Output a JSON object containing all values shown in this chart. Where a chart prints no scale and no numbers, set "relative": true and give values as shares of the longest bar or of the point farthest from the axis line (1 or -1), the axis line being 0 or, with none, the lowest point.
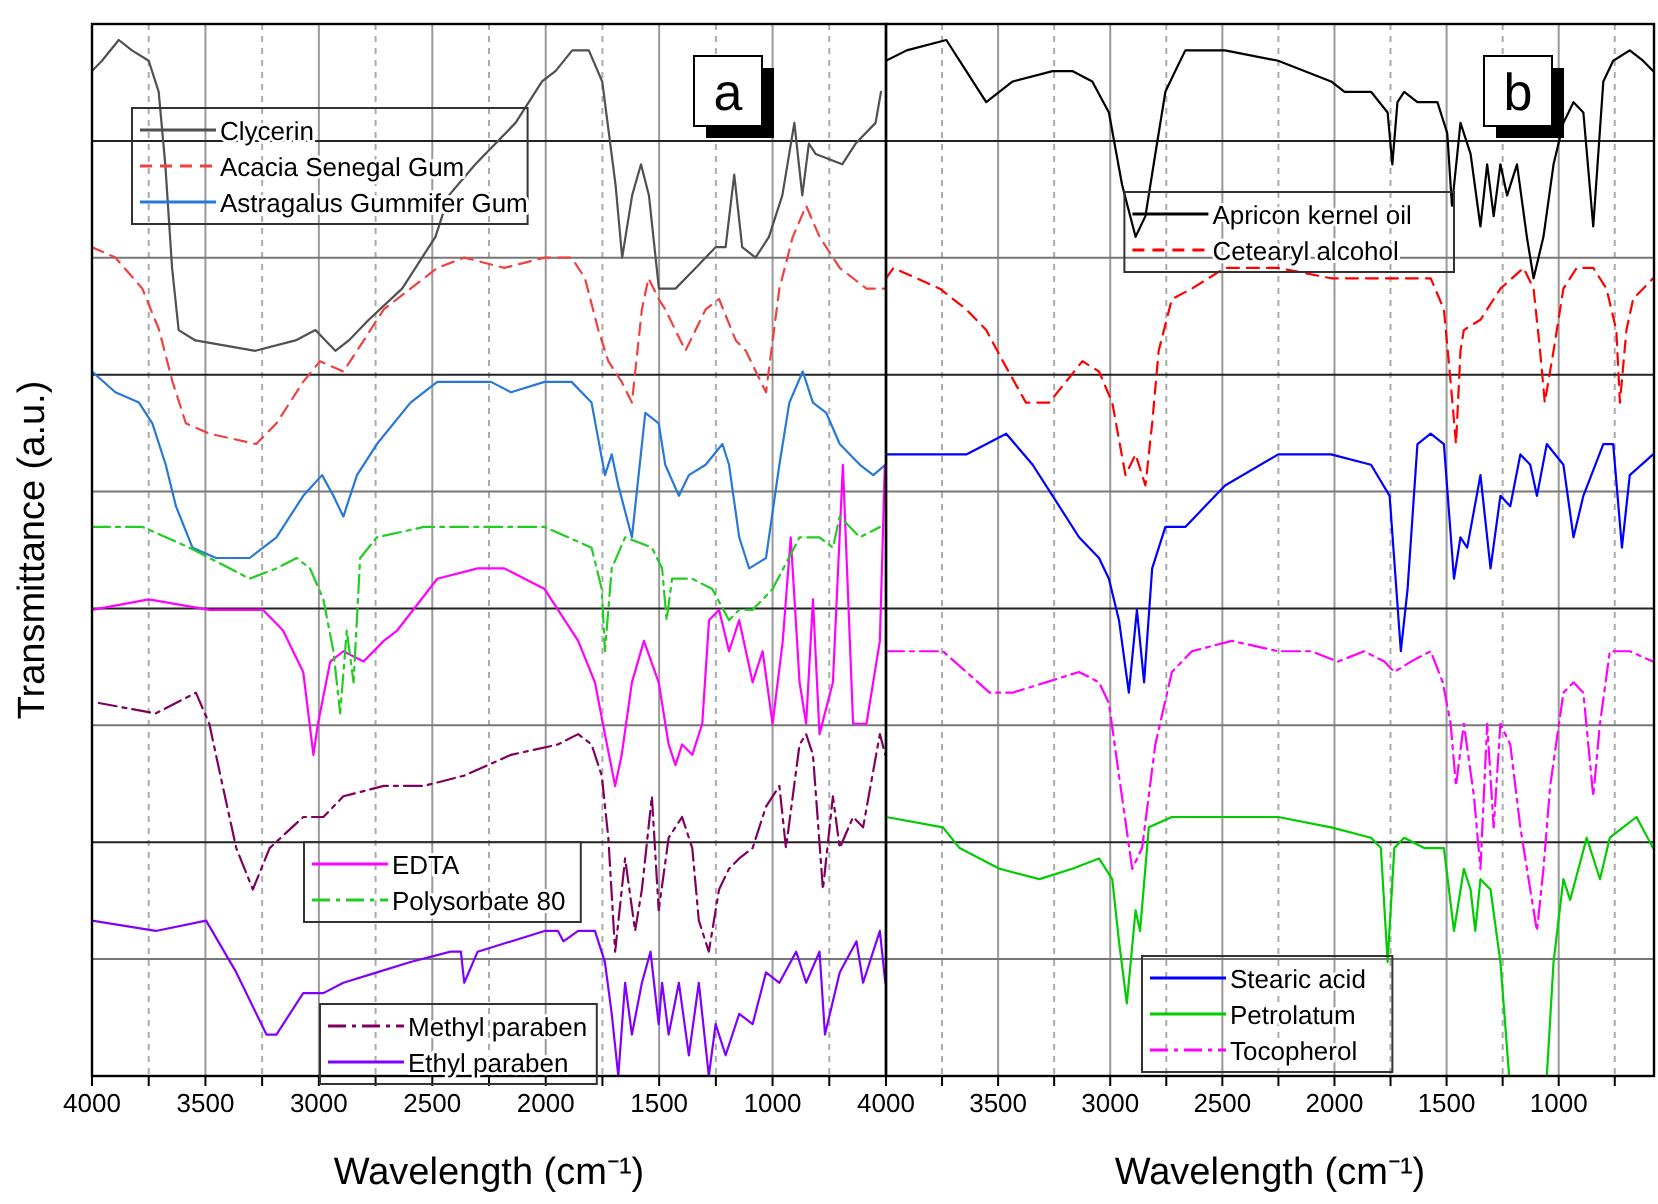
{
  "chart_data": [
    {
      "type": "line",
      "xlabel": "Wavelength (cm⁻¹)",
      "ylabel": "Transmittance (a.u.)",
      "annotations": [
        "a"
      ],
      "relative": true,
      "grid": true,
      "legend": "left",
      "xlim": [
        4000,
        500
      ],
      "xticks": [
        4000,
        {
          "value": 3750,
          "label": null
        },
        3500,
        {
          "value": 3250,
          "label": null
        },
        3000,
        {
          "value": 2750,
          "label": null
        },
        2500,
        {
          "value": 2250,
          "label": null
        },
        2000,
        {
          "value": 1750,
          "label": null
        },
        1500,
        {
          "value": 1250,
          "label": null
        },
        1000,
        {
          "value": 750,
          "label": null
        },
        {
          "value": 500,
          "label": null
        }
      ],
      "series": [
        {
          "name": "Clycerin",
          "color": "#505050",
          "line_style": "solid",
          "x": [
            4000,
            3956,
            3882,
            3824,
            3750,
            3706,
            3677,
            3647,
            3618,
            3544,
            3280,
            3103,
            3015,
            2971,
            2927,
            2868,
            2780,
            2633,
            2545,
            2486,
            2427,
            2310,
            2133,
            2016,
            1957,
            1883,
            1810,
            1751,
            1692,
            1663,
            1619,
            1580,
            1545,
            1501,
            1428,
            1339,
            1251,
            1207,
            1169,
            1134,
            1075,
            1016,
            957,
            904,
            869,
            840,
            810,
            693,
            634,
            546,
            522
          ],
          "values": [
            0.97,
            0.98,
            1.0,
            0.99,
            0.98,
            0.95,
            0.88,
            0.78,
            0.72,
            0.71,
            0.7,
            0.71,
            0.72,
            0.71,
            0.7,
            0.71,
            0.73,
            0.76,
            0.79,
            0.81,
            0.85,
            0.88,
            0.92,
            0.96,
            0.97,
            0.99,
            0.99,
            0.96,
            0.86,
            0.79,
            0.85,
            0.88,
            0.85,
            0.76,
            0.76,
            0.78,
            0.8,
            0.8,
            0.87,
            0.8,
            0.79,
            0.81,
            0.85,
            0.92,
            0.85,
            0.9,
            0.89,
            0.88,
            0.9,
            0.92,
            0.95
          ]
        },
        {
          "name": "Acacia Senegal Gum",
          "color": "#f04040",
          "line_style": "dashed",
          "x": [
            4000,
            3897,
            3778,
            3704,
            3645,
            3586,
            3483,
            3276,
            3187,
            3069,
            2995,
            2892,
            2832,
            2714,
            2596,
            2478,
            2359,
            2182,
            2005,
            1886,
            1827,
            1768,
            1724,
            1665,
            1620,
            1576,
            1547,
            1502,
            1473,
            1384,
            1295,
            1236,
            1162,
            1118,
            1029,
            970,
            911,
            852,
            793,
            704,
            586,
            503
          ],
          "values": [
            0.8,
            0.79,
            0.76,
            0.72,
            0.67,
            0.63,
            0.62,
            0.61,
            0.63,
            0.67,
            0.69,
            0.68,
            0.7,
            0.74,
            0.76,
            0.78,
            0.79,
            0.78,
            0.79,
            0.79,
            0.77,
            0.72,
            0.69,
            0.67,
            0.65,
            0.74,
            0.77,
            0.75,
            0.74,
            0.7,
            0.74,
            0.75,
            0.71,
            0.7,
            0.66,
            0.76,
            0.81,
            0.84,
            0.81,
            0.78,
            0.76,
            0.76
          ]
        },
        {
          "name": "Astragalus Gummifer Gum",
          "color": "#2878d8",
          "line_style": "solid",
          "x": [
            4000,
            3897,
            3793,
            3734,
            3675,
            3630,
            3557,
            3453,
            3305,
            3187,
            3069,
            2986,
            2936,
            2892,
            2832,
            2744,
            2596,
            2478,
            2359,
            2241,
            2153,
            2005,
            1886,
            1798,
            1739,
            1709,
            1680,
            1620,
            1561,
            1502,
            1473,
            1413,
            1369,
            1295,
            1221,
            1192,
            1147,
            1118,
            1103,
            1029,
            970,
            926,
            867,
            822,
            763,
            704,
            615,
            556,
            503
          ],
          "values": [
            0.68,
            0.66,
            0.65,
            0.63,
            0.59,
            0.55,
            0.51,
            0.5,
            0.5,
            0.52,
            0.56,
            0.58,
            0.56,
            0.54,
            0.58,
            0.61,
            0.65,
            0.67,
            0.67,
            0.67,
            0.66,
            0.67,
            0.67,
            0.65,
            0.58,
            0.6,
            0.57,
            0.52,
            0.64,
            0.63,
            0.59,
            0.56,
            0.58,
            0.59,
            0.61,
            0.59,
            0.52,
            0.5,
            0.49,
            0.5,
            0.59,
            0.65,
            0.68,
            0.65,
            0.64,
            0.61,
            0.59,
            0.58,
            0.59
          ]
        },
        {
          "name": "EDTA",
          "color": "#ff00ff",
          "line_style": "solid",
          "x": [
            4000,
            3750,
            3483,
            3247,
            3158,
            3069,
            3024,
            3004,
            2950,
            2892,
            2803,
            2714,
            2655,
            2478,
            2300,
            2182,
            2005,
            1857,
            1783,
            1739,
            1694,
            1665,
            1620,
            1567,
            1502,
            1458,
            1428,
            1399,
            1354,
            1310,
            1280,
            1236,
            1192,
            1147,
            1088,
            1044,
            1000,
            955,
            920,
            881,
            852,
            822,
            793,
            734,
            690,
            645,
            586,
            527,
            505
          ],
          "values": [
            0.45,
            0.46,
            0.45,
            0.45,
            0.43,
            0.39,
            0.31,
            0.34,
            0.4,
            0.41,
            0.4,
            0.42,
            0.43,
            0.48,
            0.49,
            0.49,
            0.47,
            0.42,
            0.38,
            0.33,
            0.28,
            0.31,
            0.38,
            0.42,
            0.38,
            0.32,
            0.3,
            0.32,
            0.31,
            0.34,
            0.44,
            0.45,
            0.41,
            0.44,
            0.38,
            0.41,
            0.34,
            0.42,
            0.52,
            0.38,
            0.34,
            0.46,
            0.33,
            0.38,
            0.59,
            0.34,
            0.34,
            0.42,
            0.59
          ]
        },
        {
          "name": "Polysorbate 80",
          "color": "#22cc22",
          "line_style": "dashdot",
          "x": [
            4000,
            3778,
            3571,
            3305,
            3187,
            3098,
            3039,
            2980,
            2936,
            2906,
            2877,
            2847,
            2818,
            2744,
            2537,
            2300,
            2005,
            1798,
            1753,
            1739,
            1709,
            1650,
            1532,
            1487,
            1467,
            1443,
            1354,
            1266,
            1192,
            1147,
            1088,
            1000,
            881,
            793,
            734,
            704,
            615,
            527
          ],
          "values": [
            0.53,
            0.53,
            0.51,
            0.48,
            0.49,
            0.5,
            0.49,
            0.46,
            0.41,
            0.35,
            0.43,
            0.38,
            0.5,
            0.52,
            0.53,
            0.53,
            0.53,
            0.51,
            0.47,
            0.41,
            0.49,
            0.52,
            0.51,
            0.49,
            0.44,
            0.48,
            0.48,
            0.47,
            0.44,
            0.45,
            0.45,
            0.47,
            0.52,
            0.52,
            0.51,
            0.54,
            0.52,
            0.53
          ]
        },
        {
          "name": "Methyl paraben",
          "color": "#800060",
          "line_style": "dashdot",
          "x": [
            3970,
            3719,
            3542,
            3483,
            3424,
            3364,
            3291,
            3217,
            3069,
            2980,
            2892,
            2714,
            2537,
            2359,
            2153,
            1946,
            1857,
            1798,
            1753,
            1724,
            1694,
            1650,
            1606,
            1576,
            1532,
            1502,
            1458,
            1399,
            1354,
            1325,
            1281,
            1236,
            1192,
            1147,
            1088,
            1029,
            970,
            941,
            881,
            852,
            822,
            778,
            734,
            704,
            645,
            601,
            527,
            503
          ],
          "values": [
            0.36,
            0.35,
            0.37,
            0.34,
            0.28,
            0.22,
            0.18,
            0.22,
            0.25,
            0.25,
            0.27,
            0.28,
            0.28,
            0.29,
            0.31,
            0.32,
            0.33,
            0.32,
            0.29,
            0.23,
            0.12,
            0.21,
            0.14,
            0.18,
            0.27,
            0.16,
            0.23,
            0.25,
            0.22,
            0.15,
            0.12,
            0.18,
            0.2,
            0.21,
            0.22,
            0.26,
            0.28,
            0.22,
            0.32,
            0.33,
            0.31,
            0.18,
            0.27,
            0.22,
            0.25,
            0.24,
            0.33,
            0.31
          ]
        },
        {
          "name": "Ethyl paraben",
          "color": "#8000ff",
          "line_style": "solid",
          "x": [
            4000,
            3719,
            3497,
            3364,
            3231,
            3187,
            3069,
            2980,
            2892,
            2744,
            2596,
            2419,
            2374,
            2359,
            2300,
            2005,
            1946,
            1922,
            1857,
            1783,
            1739,
            1709,
            1680,
            1650,
            1620,
            1576,
            1538,
            1502,
            1487,
            1458,
            1413,
            1369,
            1325,
            1281,
            1251,
            1207,
            1147,
            1088,
            1029,
            970,
            896,
            852,
            793,
            769,
            704,
            630,
            601,
            527,
            503
          ],
          "values": [
            0.15,
            0.14,
            0.15,
            0.1,
            0.04,
            0.04,
            0.08,
            0.08,
            0.09,
            0.1,
            0.11,
            0.12,
            0.12,
            0.09,
            0.12,
            0.14,
            0.14,
            0.13,
            0.14,
            0.14,
            0.11,
            0.06,
            0.0,
            0.09,
            0.04,
            0.09,
            0.12,
            0.05,
            0.09,
            0.04,
            0.09,
            0.02,
            0.09,
            0.0,
            0.05,
            0.02,
            0.06,
            0.05,
            0.1,
            0.09,
            0.12,
            0.09,
            0.12,
            0.04,
            0.1,
            0.13,
            0.09,
            0.14,
            0.09
          ]
        }
      ]
    },
    {
      "type": "line",
      "xlabel": "Wavelength (cm⁻¹)",
      "annotations": [
        "b"
      ],
      "relative": true,
      "grid": true,
      "legend": "right",
      "xlim": [
        4000,
        575
      ],
      "xticks": [
        4000,
        {
          "value": 3750,
          "label": null
        },
        3500,
        {
          "value": 3250,
          "label": null
        },
        3000,
        {
          "value": 2750,
          "label": null
        },
        2500,
        {
          "value": 2250,
          "label": null
        },
        2000,
        {
          "value": 1750,
          "label": null
        },
        1500,
        {
          "value": 1250,
          "label": null
        },
        1000,
        {
          "value": 750,
          "label": null
        }
      ],
      "series": [
        {
          "name": "Apricon kernel oil",
          "color": "#000000",
          "line_style": "solid",
          "x": [
            4000,
            3908,
            3731,
            3642,
            3553,
            3435,
            3257,
            3169,
            3080,
            3006,
            2947,
            2887,
            2843,
            2799,
            2754,
            2710,
            2665,
            2488,
            2251,
            2015,
            1955,
            1837,
            1763,
            1742,
            1719,
            1689,
            1630,
            1541,
            1497,
            1476,
            1438,
            1393,
            1349,
            1319,
            1290,
            1260,
            1230,
            1186,
            1142,
            1112,
            1068,
            1023,
            979,
            934,
            890,
            846,
            801,
            757,
            683,
            624,
            579
          ],
          "values": [
            0.98,
            0.99,
            1.0,
            0.97,
            0.94,
            0.96,
            0.97,
            0.97,
            0.96,
            0.93,
            0.86,
            0.81,
            0.83,
            0.89,
            0.95,
            0.97,
            0.99,
            0.99,
            0.98,
            0.96,
            0.95,
            0.95,
            0.93,
            0.88,
            0.94,
            0.95,
            0.94,
            0.94,
            0.91,
            0.84,
            0.92,
            0.89,
            0.82,
            0.88,
            0.83,
            0.88,
            0.85,
            0.88,
            0.81,
            0.77,
            0.81,
            0.88,
            0.92,
            0.94,
            0.93,
            0.82,
            0.96,
            0.98,
            0.99,
            0.98,
            0.97
          ]
        },
        {
          "name": "Cetearyl alcohol",
          "color": "#ff0000",
          "line_style": "dashed",
          "x": [
            4000,
            3967,
            3760,
            3642,
            3553,
            3479,
            3376,
            3272,
            3198,
            3124,
            3050,
            2991,
            2932,
            2887,
            2843,
            2813,
            2784,
            2725,
            2636,
            2488,
            2251,
            2015,
            1778,
            1571,
            1512,
            1482,
            1458,
            1438,
            1423,
            1349,
            1260,
            1157,
            1112,
            1083,
            1062,
            1023,
            979,
            920,
            846,
            787,
            743,
            727,
            698,
            668,
            579
          ],
          "values": [
            0.77,
            0.78,
            0.76,
            0.74,
            0.72,
            0.69,
            0.65,
            0.65,
            0.67,
            0.69,
            0.68,
            0.65,
            0.58,
            0.6,
            0.57,
            0.63,
            0.7,
            0.75,
            0.76,
            0.78,
            0.78,
            0.77,
            0.77,
            0.77,
            0.74,
            0.67,
            0.61,
            0.7,
            0.72,
            0.73,
            0.76,
            0.78,
            0.76,
            0.7,
            0.65,
            0.7,
            0.76,
            0.78,
            0.78,
            0.76,
            0.72,
            0.65,
            0.72,
            0.75,
            0.77
          ]
        },
        {
          "name": "Stearic acid",
          "color": "#0000ff",
          "line_style": "solid",
          "x": [
            4000,
            3849,
            3642,
            3464,
            3346,
            3257,
            3139,
            3050,
            3006,
            2961,
            2917,
            2881,
            2849,
            2813,
            2754,
            2665,
            2488,
            2251,
            2015,
            1837,
            1754,
            1704,
            1674,
            1630,
            1571,
            1512,
            1467,
            1438,
            1408,
            1349,
            1304,
            1260,
            1216,
            1171,
            1127,
            1097,
            1053,
            979,
            934,
            890,
            801,
            757,
            718,
            683,
            579
          ],
          "values": [
            0.6,
            0.6,
            0.6,
            0.62,
            0.59,
            0.56,
            0.52,
            0.5,
            0.48,
            0.44,
            0.37,
            0.45,
            0.38,
            0.49,
            0.53,
            0.53,
            0.57,
            0.6,
            0.6,
            0.59,
            0.56,
            0.41,
            0.47,
            0.61,
            0.62,
            0.61,
            0.48,
            0.52,
            0.51,
            0.58,
            0.49,
            0.56,
            0.55,
            0.6,
            0.59,
            0.56,
            0.61,
            0.59,
            0.52,
            0.56,
            0.61,
            0.61,
            0.51,
            0.58,
            0.6
          ]
        },
        {
          "name": "Petrolatum",
          "color": "#00cc00",
          "line_style": "solid",
          "x": [
            4000,
            3746,
            3672,
            3494,
            3316,
            3169,
            3050,
            2991,
            2961,
            2926,
            2887,
            2867,
            2828,
            2725,
            2488,
            2251,
            2015,
            1837,
            1793,
            1763,
            1733,
            1689,
            1600,
            1512,
            1467,
            1423,
            1393,
            1372,
            1349,
            1304,
            1260,
            1221,
            1053,
            1023,
            979,
            949,
            875,
            816,
            772,
            713,
            653,
            579
          ],
          "values": [
            0.25,
            0.24,
            0.22,
            0.2,
            0.19,
            0.2,
            0.21,
            0.19,
            0.13,
            0.07,
            0.16,
            0.14,
            0.24,
            0.25,
            0.25,
            0.25,
            0.24,
            0.23,
            0.22,
            0.11,
            0.22,
            0.23,
            0.22,
            0.22,
            0.14,
            0.2,
            0.18,
            0.14,
            0.19,
            0.18,
            0.11,
            0.0,
            0.0,
            0.11,
            0.19,
            0.17,
            0.23,
            0.19,
            0.23,
            0.24,
            0.25,
            0.22
          ]
        },
        {
          "name": "Tocopherol",
          "color": "#ff00ff",
          "line_style": "dashdot",
          "x": [
            4000,
            3879,
            3746,
            3642,
            3538,
            3435,
            3139,
            3050,
            3006,
            2961,
            2902,
            2858,
            2799,
            2725,
            2636,
            2458,
            2251,
            2103,
            1985,
            1867,
            1778,
            1733,
            1659,
            1571,
            1517,
            1482,
            1458,
            1423,
            1378,
            1349,
            1319,
            1290,
            1260,
            1216,
            1171,
            1127,
            1097,
            1068,
            1038,
            979,
            934,
            890,
            846,
            816,
            772,
            683,
            579
          ],
          "values": [
            0.41,
            0.41,
            0.41,
            0.39,
            0.37,
            0.37,
            0.39,
            0.38,
            0.36,
            0.29,
            0.2,
            0.22,
            0.32,
            0.39,
            0.41,
            0.42,
            0.41,
            0.41,
            0.4,
            0.41,
            0.4,
            0.39,
            0.4,
            0.41,
            0.38,
            0.34,
            0.28,
            0.34,
            0.27,
            0.2,
            0.34,
            0.24,
            0.34,
            0.32,
            0.24,
            0.18,
            0.14,
            0.2,
            0.28,
            0.37,
            0.38,
            0.37,
            0.27,
            0.34,
            0.41,
            0.41,
            0.4
          ]
        }
      ]
    }
  ]
}
